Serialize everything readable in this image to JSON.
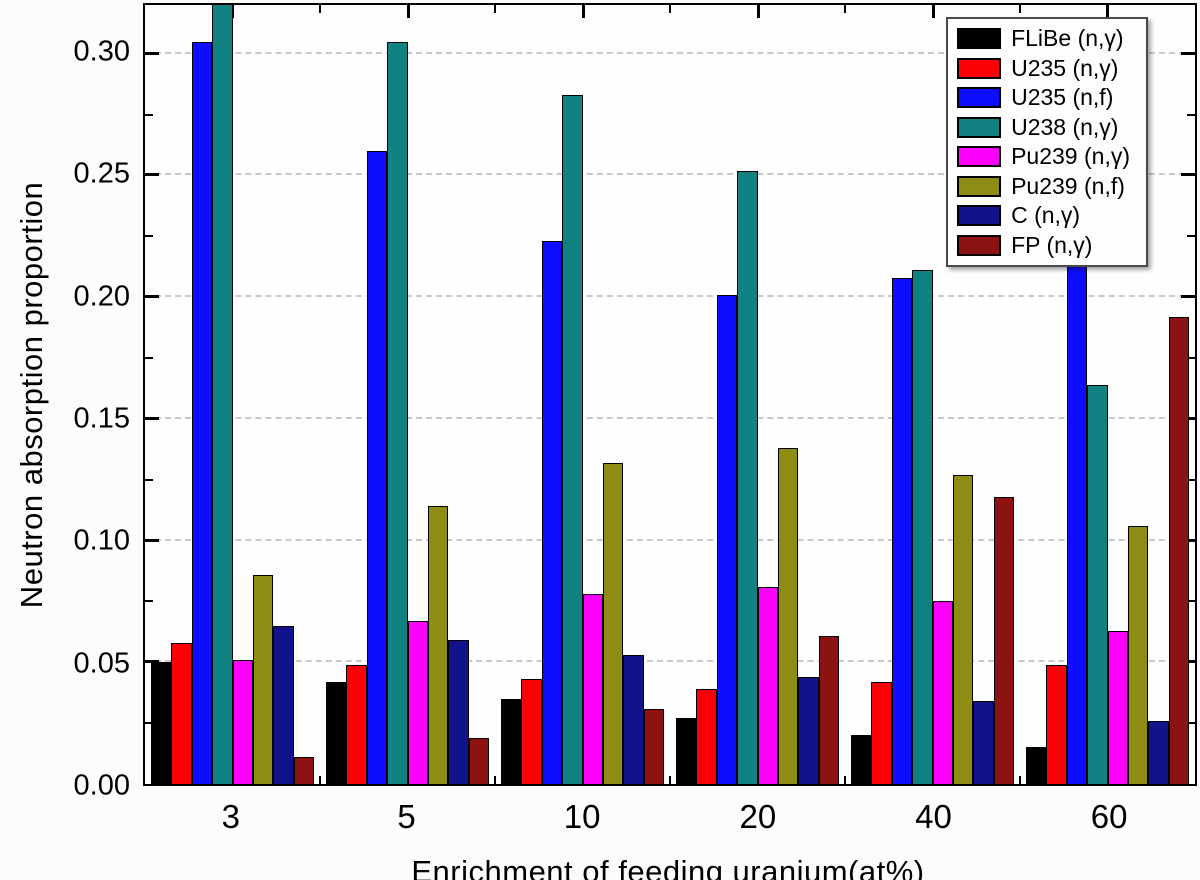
{
  "chart_data": {
    "type": "bar",
    "title": "",
    "xlabel": "Enrichment of feeding uranium(at%)",
    "ylabel": "Neutron absorption proportion",
    "categories": [
      "3",
      "5",
      "10",
      "20",
      "40",
      "60"
    ],
    "ylim": [
      0,
      0.32
    ],
    "ytick_interval": 0.05,
    "ytick_labels": [
      "0.00",
      "0.05",
      "0.10",
      "0.15",
      "0.20",
      "0.25",
      "0.30"
    ],
    "grid": "horizontal dashed gridlines at labeled ticks",
    "legend_position": "top-right inside plot, opaque box",
    "series": [
      {
        "name": "FLiBe (n,γ)",
        "color": "#000000",
        "values": [
          0.05,
          0.042,
          0.035,
          0.027,
          0.02,
          0.015
        ]
      },
      {
        "name": "U235 (n,γ)",
        "color": "#fb0006",
        "values": [
          0.058,
          0.049,
          0.043,
          0.039,
          0.042,
          0.049
        ]
      },
      {
        "name": "U235 (n,f)",
        "color": "#0e0efc",
        "values": [
          0.305,
          0.26,
          0.223,
          0.201,
          0.208,
          0.233
        ]
      },
      {
        "name": "U238 (n,γ)",
        "color": "#128181",
        "values": [
          0.33,
          0.305,
          0.283,
          0.252,
          0.211,
          0.164
        ],
        "display_note": "bar at category 3 is clipped by the axis top (exceeds 0.32)"
      },
      {
        "name": "Pu239 (n,γ)",
        "color": "#fc00fc",
        "values": [
          0.051,
          0.067,
          0.078,
          0.081,
          0.075,
          0.063
        ]
      },
      {
        "name": "Pu239 (n,f)",
        "color": "#8d8d13",
        "values": [
          0.086,
          0.114,
          0.132,
          0.138,
          0.127,
          0.106
        ]
      },
      {
        "name": "C (n,γ)",
        "color": "#12128c",
        "values": [
          0.065,
          0.059,
          0.053,
          0.044,
          0.034,
          0.026
        ]
      },
      {
        "name": "FP (n,γ)",
        "color": "#8d1212",
        "values": [
          0.011,
          0.019,
          0.031,
          0.061,
          0.118,
          0.192
        ]
      }
    ]
  }
}
